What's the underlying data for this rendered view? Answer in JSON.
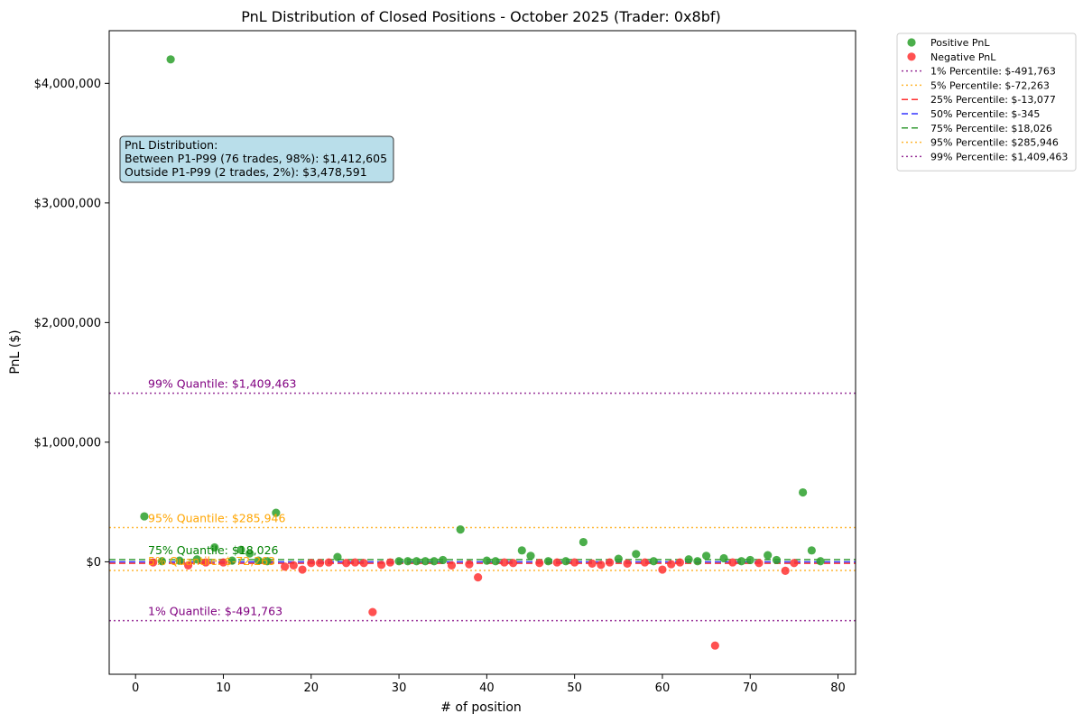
{
  "chart_data": {
    "type": "scatter",
    "title": "PnL Distribution of Closed Positions - October 2025 (Trader: 0x8bf)",
    "xlabel": "# of position",
    "ylabel": "PnL ($)",
    "xlim": [
      -3,
      82
    ],
    "ylim": [
      -940000,
      4440000
    ],
    "x_ticks": [
      0,
      10,
      20,
      30,
      40,
      50,
      60,
      70,
      80
    ],
    "x_tick_labels": [
      "0",
      "10",
      "20",
      "30",
      "40",
      "50",
      "60",
      "70",
      "80"
    ],
    "y_ticks": [
      0,
      1000000,
      2000000,
      3000000,
      4000000
    ],
    "y_tick_labels": [
      "$0",
      "$1,000,000",
      "$2,000,000",
      "$3,000,000",
      "$4,000,000"
    ],
    "grid": false,
    "legend_placement": "outside-top-right",
    "colors": {
      "positive": "#2ca02c",
      "negative": "#ff3333"
    },
    "series": [
      {
        "name": "Positive PnL",
        "color": "#2ca02c",
        "x": [
          1,
          3,
          4,
          5,
          7,
          9,
          11,
          12,
          13,
          14,
          15,
          16,
          23,
          30,
          31,
          32,
          33,
          34,
          35,
          37,
          40,
          41,
          44,
          45,
          47,
          49,
          51,
          55,
          57,
          59,
          63,
          64,
          65,
          67,
          69,
          70,
          72,
          73,
          76,
          77,
          78
        ],
        "y": [
          380000,
          5000,
          4200000,
          10000,
          20000,
          120000,
          10000,
          100000,
          70000,
          10000,
          5000,
          410000,
          40000,
          5000,
          5000,
          5000,
          5000,
          5000,
          15000,
          270000,
          10000,
          5000,
          95000,
          50000,
          5000,
          5000,
          165000,
          25000,
          65000,
          5000,
          20000,
          5000,
          50000,
          30000,
          5000,
          15000,
          55000,
          15000,
          580000,
          95000,
          5000
        ]
      },
      {
        "name": "Negative PnL",
        "color": "#ff3333",
        "x": [
          2,
          6,
          8,
          10,
          17,
          18,
          19,
          20,
          21,
          22,
          24,
          25,
          26,
          27,
          28,
          29,
          36,
          38,
          39,
          42,
          43,
          46,
          48,
          50,
          52,
          53,
          54,
          56,
          58,
          60,
          61,
          62,
          66,
          68,
          71,
          74,
          75
        ],
        "y": [
          -5000,
          -30000,
          -5000,
          -5000,
          -40000,
          -30000,
          -65000,
          -10000,
          -10000,
          -5000,
          -10000,
          -5000,
          -10000,
          -420000,
          -25000,
          -5000,
          -30000,
          -20000,
          -130000,
          -5000,
          -10000,
          -10000,
          -5000,
          -5000,
          -15000,
          -25000,
          -5000,
          -15000,
          -5000,
          -65000,
          -20000,
          -5000,
          -700000,
          -5000,
          -10000,
          -75000,
          -10000
        ]
      }
    ],
    "percentiles": [
      {
        "label": "1% Percentile: $-491,763",
        "quantile_label": "1% Quantile: $-491,763",
        "value": -491763,
        "color": "#800080",
        "dash": "dotted",
        "annotated": true
      },
      {
        "label": "5% Percentile: $-72,263",
        "quantile_label": "5% Quantile: $-72,263",
        "value": -72263,
        "color": "#ffa500",
        "dash": "dotted",
        "annotated": true
      },
      {
        "label": "25% Percentile: $-13,077",
        "quantile_label": "",
        "value": -13077,
        "color": "#ff0000",
        "dash": "dashed",
        "annotated": false
      },
      {
        "label": "50% Percentile: $-345",
        "quantile_label": "",
        "value": -345,
        "color": "#0000ff",
        "dash": "dashed",
        "annotated": false
      },
      {
        "label": "75% Percentile: $18,026",
        "quantile_label": "75% Quantile: $18,026",
        "value": 18026,
        "color": "#008000",
        "dash": "dashed",
        "annotated": true
      },
      {
        "label": "95% Percentile: $285,946",
        "quantile_label": "95% Quantile: $285,946",
        "value": 285946,
        "color": "#ffa500",
        "dash": "dotted",
        "annotated": true
      },
      {
        "label": "99% Percentile: $1,409,463",
        "quantile_label": "99% Quantile: $1,409,463",
        "value": 1409463,
        "color": "#800080",
        "dash": "dotted",
        "annotated": true
      }
    ],
    "annotation_box": {
      "lines": [
        "PnL Distribution:",
        "Between P1-P99 (76 trades, 98%): $1,412,605",
        "Outside P1-P99 (2 trades, 2%): $3,478,591"
      ],
      "fill": "#add8e6"
    }
  }
}
